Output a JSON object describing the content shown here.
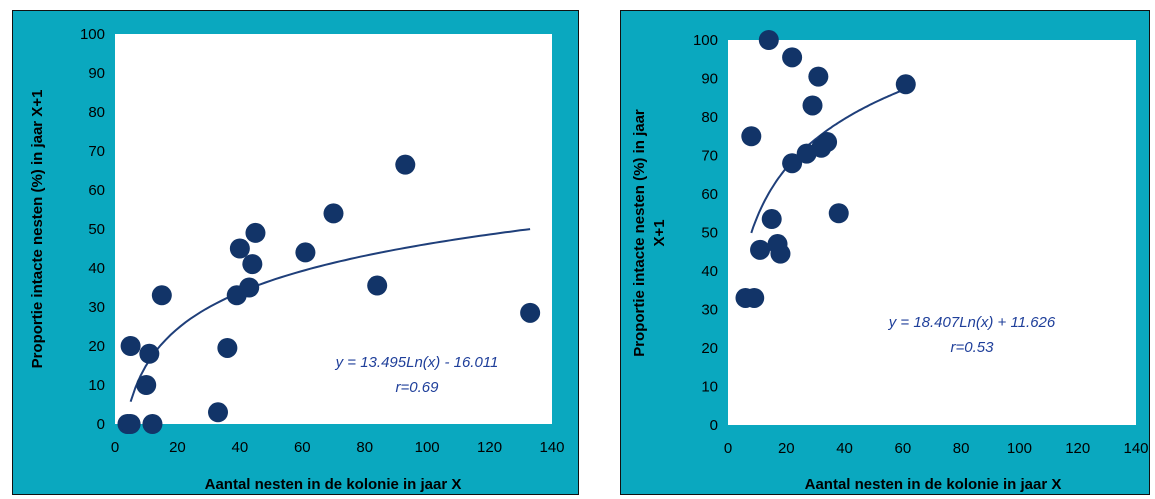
{
  "chart_data": [
    {
      "type": "scatter",
      "xlabel": "Aantal nesten in de kolonie in jaar X",
      "ylabel": "Proportie intacte nesten (%) in jaar X+1",
      "xlim": [
        0,
        140
      ],
      "ylim": [
        0,
        100
      ],
      "xticks": [
        "0",
        "20",
        "40",
        "60",
        "80",
        "100",
        "120",
        "140"
      ],
      "yticks": [
        "0",
        "10",
        "20",
        "30",
        "40",
        "50",
        "60",
        "70",
        "80",
        "90",
        "100"
      ],
      "grid": false,
      "points": [
        {
          "x": 4,
          "y": 0
        },
        {
          "x": 5,
          "y": 0
        },
        {
          "x": 12,
          "y": 0
        },
        {
          "x": 5,
          "y": 20
        },
        {
          "x": 10,
          "y": 10
        },
        {
          "x": 11,
          "y": 18
        },
        {
          "x": 15,
          "y": 33
        },
        {
          "x": 33,
          "y": 3
        },
        {
          "x": 36,
          "y": 19.5
        },
        {
          "x": 39,
          "y": 33
        },
        {
          "x": 40,
          "y": 45
        },
        {
          "x": 43,
          "y": 35
        },
        {
          "x": 44,
          "y": 41
        },
        {
          "x": 45,
          "y": 49
        },
        {
          "x": 61,
          "y": 44
        },
        {
          "x": 70,
          "y": 54
        },
        {
          "x": 84,
          "y": 35.5
        },
        {
          "x": 93,
          "y": 66.5
        },
        {
          "x": 133,
          "y": 28.5
        }
      ],
      "trendline": {
        "type": "log",
        "a": 13.495,
        "b": -16.011,
        "x_from": 5,
        "x_to": 133
      },
      "equation_label": "y = 13.495Ln(x) - 16.011",
      "r_label": "r=0.69"
    },
    {
      "type": "scatter",
      "xlabel": "Aantal nesten in de kolonie in jaar X",
      "ylabel_line1": "Proportie intacte nesten (%) in jaar",
      "ylabel_line2": "X+1",
      "xlim": [
        0,
        140
      ],
      "ylim": [
        0,
        100
      ],
      "xticks": [
        "0",
        "20",
        "40",
        "60",
        "80",
        "100",
        "120",
        "140"
      ],
      "yticks": [
        "0",
        "10",
        "20",
        "30",
        "40",
        "50",
        "60",
        "70",
        "80",
        "90",
        "100"
      ],
      "grid": false,
      "points": [
        {
          "x": 6,
          "y": 33
        },
        {
          "x": 9,
          "y": 33
        },
        {
          "x": 8,
          "y": 75
        },
        {
          "x": 11,
          "y": 45.5
        },
        {
          "x": 14,
          "y": 100
        },
        {
          "x": 15,
          "y": 53.5
        },
        {
          "x": 17,
          "y": 47
        },
        {
          "x": 18,
          "y": 44.5
        },
        {
          "x": 22,
          "y": 68
        },
        {
          "x": 22,
          "y": 95.5
        },
        {
          "x": 27,
          "y": 70.5
        },
        {
          "x": 29,
          "y": 83
        },
        {
          "x": 31,
          "y": 90.5
        },
        {
          "x": 32,
          "y": 72
        },
        {
          "x": 34,
          "y": 73.5
        },
        {
          "x": 38,
          "y": 55
        },
        {
          "x": 61,
          "y": 88.5
        }
      ],
      "trendline": {
        "type": "log",
        "a": 18.407,
        "b": 11.626,
        "x_from": 8,
        "x_to": 61
      },
      "equation_label": "y = 18.407Ln(x) + 11.626",
      "r_label": "r=0.53"
    }
  ],
  "colors": {
    "panel_background": "#0aa8bf",
    "plot_background": "#ffffff",
    "marker": "#123468",
    "trendline": "#1f3f7a",
    "equation_text": "#1f3f9a"
  }
}
